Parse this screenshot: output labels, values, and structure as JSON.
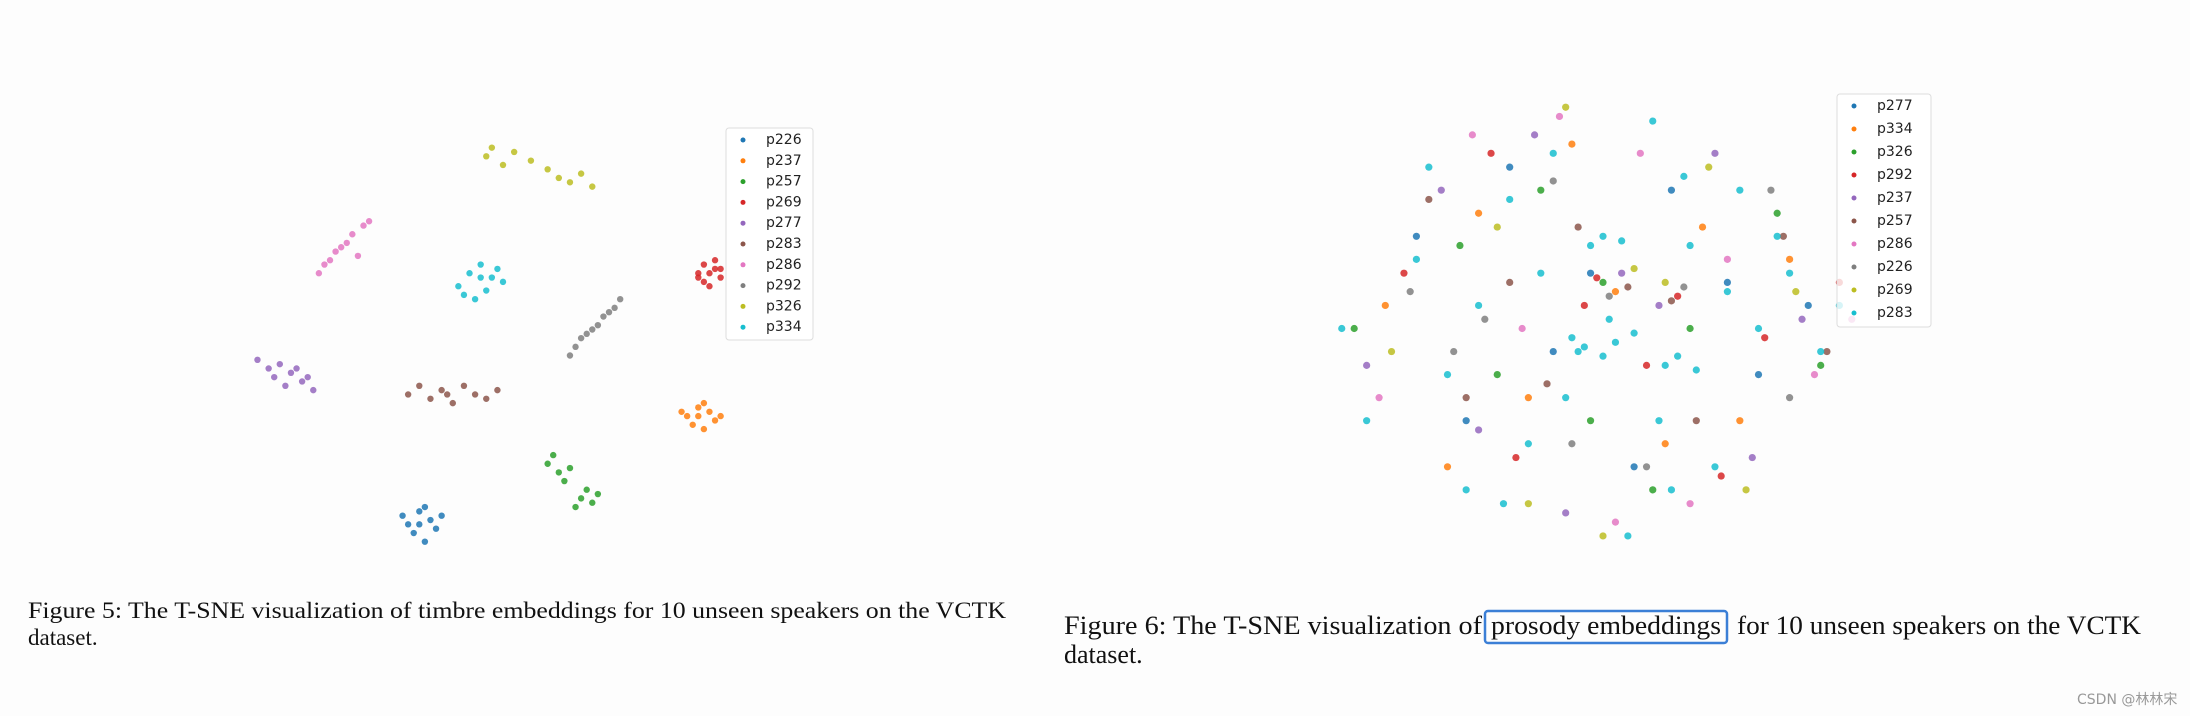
{
  "chart_data": [
    {
      "type": "scatter",
      "xlim": [
        0,
        100
      ],
      "ylim": [
        0,
        100
      ],
      "series": [
        {
          "name": "p226",
          "color": "#1f77b4",
          "x": [
            33,
            35,
            37,
            38,
            34,
            36,
            39,
            32,
            36,
            35
          ],
          "y": [
            8,
            11,
            9,
            7,
            6,
            12,
            10,
            10,
            4,
            8
          ]
        },
        {
          "name": "p237",
          "color": "#ff7f0e",
          "x": [
            83,
            85,
            87,
            88,
            84,
            86,
            89,
            82,
            86,
            85
          ],
          "y": [
            33,
            35,
            34,
            32,
            31,
            36,
            33,
            34,
            30,
            33
          ]
        },
        {
          "name": "p257",
          "color": "#2ca02c",
          "x": [
            58,
            59,
            60,
            61,
            62,
            64,
            65,
            66,
            67,
            63
          ],
          "y": [
            22,
            24,
            20,
            18,
            21,
            14,
            16,
            13,
            15,
            12
          ]
        },
        {
          "name": "p269",
          "color": "#d62728",
          "x": [
            85,
            86,
            88,
            89,
            87,
            86,
            88,
            87,
            85,
            89
          ],
          "y": [
            66,
            68,
            67,
            65,
            63,
            64,
            69,
            66,
            65,
            67
          ]
        },
        {
          "name": "p277",
          "color": "#9467bd",
          "x": [
            6,
            8,
            10,
            12,
            14,
            16,
            9,
            11,
            13,
            15
          ],
          "y": [
            46,
            44,
            45,
            43,
            41,
            39,
            42,
            40,
            44,
            42
          ]
        },
        {
          "name": "p283",
          "color": "#8c564b",
          "x": [
            33,
            35,
            37,
            39,
            41,
            43,
            45,
            47,
            49,
            40
          ],
          "y": [
            38,
            40,
            37,
            39,
            36,
            40,
            38,
            37,
            39,
            38
          ]
        },
        {
          "name": "p286",
          "color": "#e377c2",
          "x": [
            17,
            19,
            21,
            23,
            25,
            18,
            20,
            24,
            22,
            26
          ],
          "y": [
            66,
            69,
            72,
            75,
            77,
            68,
            71,
            70,
            73,
            78
          ]
        },
        {
          "name": "p292",
          "color": "#7f7f7f",
          "x": [
            62,
            64,
            66,
            68,
            70,
            71,
            63,
            67,
            69,
            65
          ],
          "y": [
            47,
            51,
            53,
            56,
            58,
            60,
            49,
            54,
            57,
            52
          ]
        },
        {
          "name": "p326",
          "color": "#bcbd22",
          "x": [
            47,
            48,
            50,
            52,
            55,
            58,
            60,
            62,
            64,
            66
          ],
          "y": [
            93,
            95,
            91,
            94,
            92,
            90,
            88,
            87,
            89,
            86
          ]
        },
        {
          "name": "p334",
          "color": "#17becf",
          "x": [
            42,
            44,
            46,
            48,
            50,
            43,
            45,
            47,
            49,
            46
          ],
          "y": [
            63,
            66,
            68,
            65,
            64,
            61,
            60,
            62,
            67,
            65
          ]
        }
      ]
    },
    {
      "type": "scatter",
      "xlim": [
        0,
        100
      ],
      "ylim": [
        0,
        100
      ],
      "series": [
        {
          "name": "p277",
          "color": "#1f77b4",
          "x": [
            20,
            35,
            48,
            61,
            75,
            28,
            55,
            70,
            42,
            83
          ],
          "y": [
            70,
            85,
            62,
            80,
            40,
            30,
            20,
            60,
            45,
            55
          ]
        },
        {
          "name": "p334",
          "color": "#ff7f0e",
          "x": [
            15,
            30,
            45,
            52,
            66,
            80,
            38,
            60,
            25,
            72
          ],
          "y": [
            55,
            75,
            90,
            58,
            72,
            65,
            35,
            25,
            20,
            30
          ]
        },
        {
          "name": "p326",
          "color": "#2ca02c",
          "x": [
            10,
            27,
            40,
            50,
            64,
            78,
            33,
            58,
            48,
            85
          ],
          "y": [
            50,
            68,
            80,
            60,
            50,
            75,
            40,
            15,
            30,
            42
          ]
        },
        {
          "name": "p292",
          "color": "#d62728",
          "x": [
            18,
            32,
            47,
            49,
            62,
            76,
            36,
            57,
            69,
            88
          ],
          "y": [
            62,
            88,
            55,
            61,
            57,
            48,
            22,
            42,
            18,
            60
          ]
        },
        {
          "name": "p237",
          "color": "#9467bd",
          "x": [
            12,
            24,
            39,
            53,
            68,
            82,
            44,
            59,
            30,
            74
          ],
          "y": [
            42,
            80,
            92,
            62,
            88,
            52,
            10,
            55,
            28,
            22
          ]
        },
        {
          "name": "p257",
          "color": "#8c564b",
          "x": [
            22,
            35,
            46,
            54,
            61,
            79,
            41,
            65,
            28,
            86
          ],
          "y": [
            78,
            60,
            72,
            59,
            56,
            70,
            38,
            30,
            35,
            45
          ]
        },
        {
          "name": "p286",
          "color": "#e377c2",
          "x": [
            14,
            29,
            43,
            56,
            70,
            84,
            37,
            52,
            64,
            90
          ],
          "y": [
            35,
            92,
            96,
            88,
            65,
            40,
            50,
            8,
            12,
            52
          ]
        },
        {
          "name": "p226",
          "color": "#7f7f7f",
          "x": [
            19,
            31,
            42,
            51,
            63,
            77,
            45,
            57,
            26,
            80
          ],
          "y": [
            58,
            52,
            82,
            57,
            59,
            80,
            25,
            20,
            45,
            35
          ]
        },
        {
          "name": "p269",
          "color": "#bcbd22",
          "x": [
            16,
            33,
            44,
            55,
            67,
            81,
            38,
            60,
            50,
            73
          ],
          "y": [
            45,
            72,
            98,
            63,
            85,
            58,
            12,
            60,
            5,
            15
          ]
        },
        {
          "name": "p283",
          "color": "#17becf",
          "x": [
            8,
            12,
            20,
            25,
            30,
            35,
            40,
            45,
            47,
            50,
            52,
            55,
            60,
            62,
            65,
            70,
            75,
            80,
            85,
            88,
            50,
            48,
            53,
            51,
            46,
            63,
            61,
            59,
            64,
            38,
            42,
            58,
            68,
            22,
            34,
            72,
            28,
            78,
            44,
            54
          ],
          "y": [
            50,
            30,
            65,
            40,
            55,
            78,
            62,
            48,
            46,
            44,
            47,
            49,
            42,
            44,
            41,
            58,
            50,
            62,
            45,
            55,
            70,
            68,
            69,
            52,
            45,
            83,
            15,
            30,
            68,
            25,
            88,
            95,
            20,
            85,
            12,
            80,
            15,
            70,
            35,
            5
          ]
        }
      ]
    }
  ],
  "captions": [
    {
      "line1": "Figure 5: The T-SNE visualization of timbre embeddings for 10 unseen speakers on the VCTK",
      "line2": "dataset."
    },
    {
      "line1_before": "Figure 6: The T-SNE visualization of",
      "highlight": "prosody embeddings",
      "line1_after": "for 10 unseen speakers on the VCTK",
      "line2": "dataset."
    }
  ],
  "watermark": "CSDN @林林宋"
}
